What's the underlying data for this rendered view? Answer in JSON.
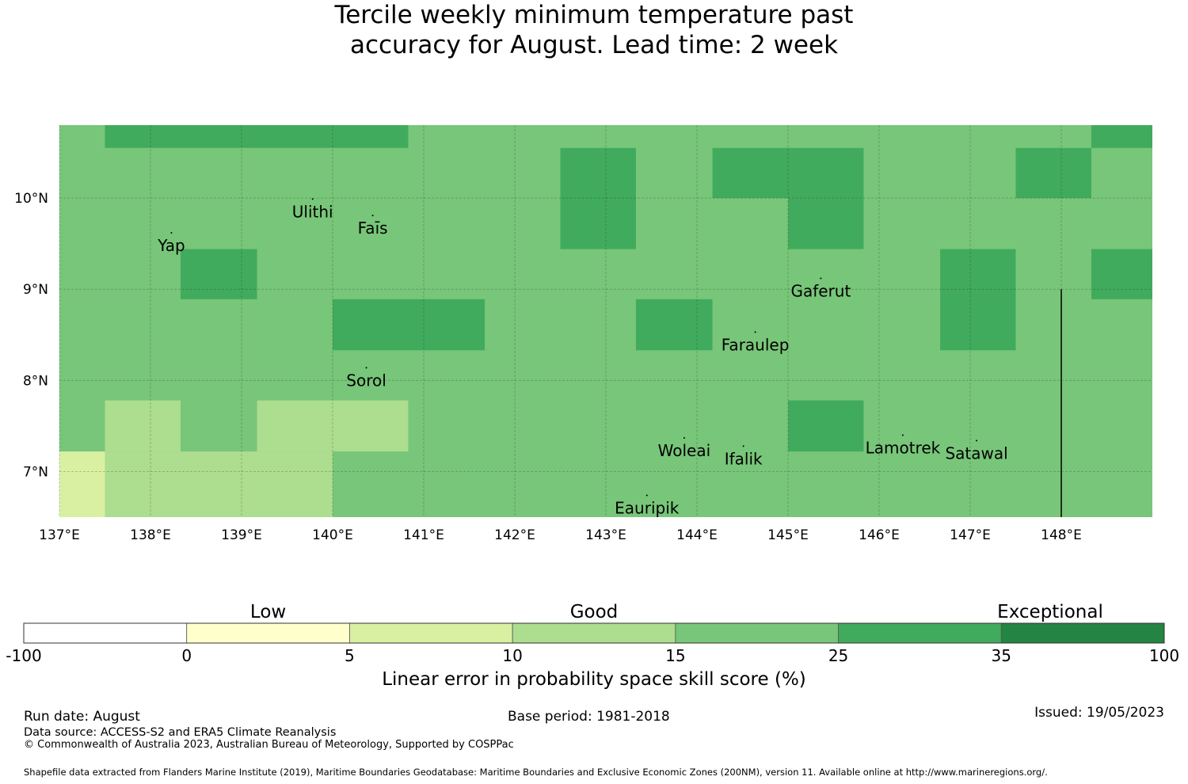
{
  "title": {
    "line1": "Tercile weekly minimum temperature past",
    "line2": "accuracy for August. Lead time: 2 week"
  },
  "map": {
    "lon_range": [
      137,
      149
    ],
    "lat_range": [
      6.5,
      10.8
    ],
    "x_ticks": [
      {
        "value": 137,
        "label": "137°E"
      },
      {
        "value": 138,
        "label": "138°E"
      },
      {
        "value": 139,
        "label": "139°E"
      },
      {
        "value": 140,
        "label": "140°E"
      },
      {
        "value": 141,
        "label": "141°E"
      },
      {
        "value": 142,
        "label": "142°E"
      },
      {
        "value": 143,
        "label": "143°E"
      },
      {
        "value": 144,
        "label": "144°E"
      },
      {
        "value": 145,
        "label": "145°E"
      },
      {
        "value": 146,
        "label": "146°E"
      },
      {
        "value": 147,
        "label": "147°E"
      },
      {
        "value": 148,
        "label": "148°E"
      }
    ],
    "y_ticks": [
      {
        "value": 10,
        "label": "10°N"
      },
      {
        "value": 9,
        "label": "9°N"
      },
      {
        "value": 8,
        "label": "8°N"
      },
      {
        "value": 7,
        "label": "7°N"
      }
    ],
    "grid": true,
    "boundary_line": {
      "lon": 148,
      "lat_from": 6.5,
      "lat_to": 9.0
    },
    "places": [
      {
        "name": "Ulithi",
        "lon": 139.78,
        "lat": 9.85
      },
      {
        "name": "Faīs",
        "lon": 140.44,
        "lat": 9.67
      },
      {
        "name": "Yap",
        "lon": 138.23,
        "lat": 9.48
      },
      {
        "name": "Gaferut",
        "lon": 145.36,
        "lat": 8.98
      },
      {
        "name": "Faraulep",
        "lon": 144.64,
        "lat": 8.39
      },
      {
        "name": "Sorol",
        "lon": 140.37,
        "lat": 8.0
      },
      {
        "name": "Woleai",
        "lon": 143.86,
        "lat": 7.23
      },
      {
        "name": "Ifalik",
        "lon": 144.51,
        "lat": 7.14
      },
      {
        "name": "Lamotrek",
        "lon": 146.26,
        "lat": 7.26
      },
      {
        "name": "Satawal",
        "lon": 147.07,
        "lat": 7.2
      },
      {
        "name": "Eauripik",
        "lon": 143.45,
        "lat": 6.6
      }
    ]
  },
  "chart_data": {
    "type": "heatmap",
    "title": "Tercile weekly minimum temperature past accuracy for August. Lead time: 2 week",
    "x_unit": "degrees east longitude",
    "y_unit": "degrees north latitude",
    "xlim": [
      137,
      149
    ],
    "ylim": [
      6.5,
      10.8
    ],
    "value_label": "Linear error in probability space skill score (%)",
    "default_bin": 4,
    "cells": [
      {
        "lon": [
          137.5,
          140.83
        ],
        "lat": [
          10.55,
          10.8
        ],
        "bin": 5
      },
      {
        "lon": [
          148.33,
          149.0
        ],
        "lat": [
          10.55,
          10.8
        ],
        "bin": 5
      },
      {
        "lon": [
          142.5,
          143.33
        ],
        "lat": [
          9.44,
          10.55
        ],
        "bin": 5
      },
      {
        "lon": [
          144.17,
          145.83
        ],
        "lat": [
          10.0,
          10.55
        ],
        "bin": 5
      },
      {
        "lon": [
          145.0,
          145.83
        ],
        "lat": [
          9.44,
          10.0
        ],
        "bin": 5
      },
      {
        "lon": [
          147.5,
          148.33
        ],
        "lat": [
          10.0,
          10.55
        ],
        "bin": 5
      },
      {
        "lon": [
          138.33,
          139.17
        ],
        "lat": [
          8.89,
          9.44
        ],
        "bin": 5
      },
      {
        "lon": [
          146.67,
          147.5
        ],
        "lat": [
          8.33,
          9.44
        ],
        "bin": 5
      },
      {
        "lon": [
          148.33,
          149.0
        ],
        "lat": [
          8.89,
          9.44
        ],
        "bin": 5
      },
      {
        "lon": [
          140.0,
          141.67
        ],
        "lat": [
          8.33,
          8.89
        ],
        "bin": 5
      },
      {
        "lon": [
          143.33,
          144.17
        ],
        "lat": [
          8.33,
          8.89
        ],
        "bin": 5
      },
      {
        "lon": [
          145.0,
          145.83
        ],
        "lat": [
          7.22,
          7.78
        ],
        "bin": 5
      },
      {
        "lon": [
          137.5,
          138.33
        ],
        "lat": [
          7.22,
          7.78
        ],
        "bin": 3
      },
      {
        "lon": [
          139.17,
          140.83
        ],
        "lat": [
          7.22,
          7.78
        ],
        "bin": 3
      },
      {
        "lon": [
          137.5,
          140.0
        ],
        "lat": [
          6.5,
          7.22
        ],
        "bin": 3
      },
      {
        "lon": [
          137.0,
          137.5
        ],
        "lat": [
          6.5,
          7.22
        ],
        "bin": 2
      }
    ]
  },
  "colorbar": {
    "categories": [
      {
        "label": "Low",
        "at_tick": 1.5
      },
      {
        "label": "Good",
        "at_tick": 3.5
      },
      {
        "label": "Exceptional",
        "at_tick": 6.3
      }
    ],
    "ticks": [
      "-100",
      "0",
      "5",
      "10",
      "15",
      "25",
      "35",
      "100"
    ],
    "colors": [
      "#ffffff",
      "#ffffcc",
      "#d9f0a3",
      "#addd8e",
      "#78c679",
      "#41ab5d",
      "#238443"
    ],
    "label": "Linear error in probability space skill score (%)"
  },
  "footer": {
    "run_date": "Run date: August",
    "base_period": "Base period: 1981-2018",
    "issued": "Issued: 19/05/2023",
    "data_source": "Data source: ACCESS-S2 and ERA5 Climate Reanalysis",
    "copyright": "© Commonwealth of Australia 2023, Australian Bureau of Meteorology, Supported by COSPPac",
    "shapefile": "Shapefile data extracted from Flanders Marine Institute (2019), Maritime Boundaries Geodatabase: Maritime Boundaries and Exclusive Economic Zones (200NM), version 11. Available online at http://www.marineregions.org/."
  }
}
